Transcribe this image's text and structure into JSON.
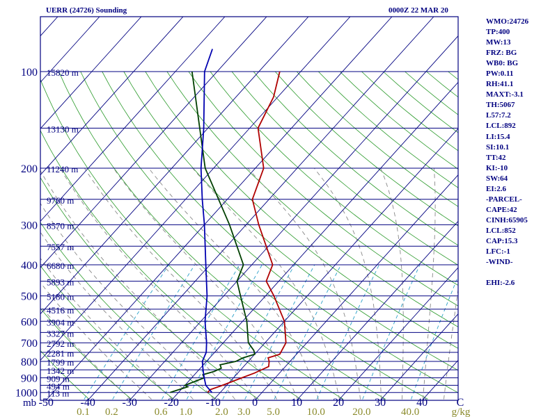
{
  "header": {
    "station": "UERR (24726) Sounding",
    "time": "0000Z 22 MAR 20"
  },
  "indices": [
    "WMO:24726",
    "TP:400",
    "MW:13",
    "FRZ: BG",
    "WB0: BG",
    "PW:0.11",
    "RH:41.1",
    "MAXT:-3.1",
    "TH:5067",
    "L57:7.2",
    "LCL:892",
    "LI:15.4",
    "SI:10.1",
    "TT:42",
    "KI:-10",
    "SW:64",
    "EI:2.6",
    "-PARCEL-",
    "CAPE:42",
    "CINH:65905",
    "LCL:852",
    "CAP:15.3",
    "LFC:-1",
    "-WIND-",
    "",
    "EHI:-2.6"
  ],
  "chart_data": {
    "type": "line",
    "title": "UERR (24726) Sounding",
    "xlabel": "",
    "ylabel": "mb",
    "x_tick_labels": [
      "-50",
      "-40",
      "-30",
      "-20",
      "-10",
      "0",
      "10",
      "20",
      "30",
      "40",
      "C"
    ],
    "x_tick_values": [
      -50,
      -40,
      -30,
      -20,
      -10,
      0,
      10,
      20,
      30,
      40
    ],
    "mixing_ratio_labels": [
      "0.1",
      "0.2",
      "0.6",
      "1.0",
      "2.0",
      "3.0",
      "5.0",
      "10.0",
      "20.0",
      "40.0",
      "g/kg"
    ],
    "mixing_ratio_values": [
      0.1,
      0.2,
      0.6,
      1.0,
      2.0,
      3.0,
      5.0,
      10.0,
      20.0,
      40.0
    ],
    "pressure_labels": [
      "100",
      "200",
      "300",
      "400",
      "500",
      "600",
      "700",
      "800",
      "900",
      "1000"
    ],
    "pressure_values": [
      100,
      200,
      300,
      400,
      500,
      600,
      700,
      800,
      900,
      1000
    ],
    "ylim": [
      1050,
      100
    ],
    "xlim": [
      -50,
      50
    ],
    "height_labels": [
      {
        "p": 100,
        "label": "15820 m"
      },
      {
        "p": 150,
        "label": "13130 m"
      },
      {
        "p": 200,
        "label": "11240 m"
      },
      {
        "p": 250,
        "label": "9760 m"
      },
      {
        "p": 300,
        "label": "8570 m"
      },
      {
        "p": 350,
        "label": "7557 m"
      },
      {
        "p": 400,
        "label": "6680 m"
      },
      {
        "p": 450,
        "label": "5893 m"
      },
      {
        "p": 500,
        "label": "5180 m"
      },
      {
        "p": 550,
        "label": "4516 m"
      },
      {
        "p": 600,
        "label": "3904 m"
      },
      {
        "p": 650,
        "label": "3327 m"
      },
      {
        "p": 700,
        "label": "2792 m"
      },
      {
        "p": 750,
        "label": "2281 m"
      },
      {
        "p": 800,
        "label": "1799 m"
      },
      {
        "p": 850,
        "label": "1342 m"
      },
      {
        "p": 900,
        "label": "909 m"
      },
      {
        "p": 950,
        "label": "494 m"
      },
      {
        "p": 1000,
        "label": "113 m"
      }
    ],
    "series": [
      {
        "color": "#b00000",
        "values": [
          {
            "p": 1000,
            "t": -13
          },
          {
            "p": 980,
            "t": -13
          },
          {
            "p": 950,
            "t": -11
          },
          {
            "p": 900,
            "t": -8
          },
          {
            "p": 870,
            "t": -6
          },
          {
            "p": 830,
            "t": -4
          },
          {
            "p": 800,
            "t": -5
          },
          {
            "p": 780,
            "t": -6
          },
          {
            "p": 760,
            "t": -4
          },
          {
            "p": 700,
            "t": -5
          },
          {
            "p": 600,
            "t": -10
          },
          {
            "p": 500,
            "t": -18
          },
          {
            "p": 450,
            "t": -23
          },
          {
            "p": 400,
            "t": -25
          },
          {
            "p": 300,
            "t": -37
          },
          {
            "p": 250,
            "t": -44
          },
          {
            "p": 200,
            "t": -48
          },
          {
            "p": 150,
            "t": -58
          },
          {
            "p": 120,
            "t": -61
          },
          {
            "p": 100,
            "t": -65
          }
        ]
      },
      {
        "color": "#004000",
        "values": [
          {
            "p": 1000,
            "t": -22
          },
          {
            "p": 960,
            "t": -19
          },
          {
            "p": 950,
            "t": -20
          },
          {
            "p": 900,
            "t": -17
          },
          {
            "p": 880,
            "t": -18
          },
          {
            "p": 860,
            "t": -16
          },
          {
            "p": 840,
            "t": -15
          },
          {
            "p": 820,
            "t": -16
          },
          {
            "p": 800,
            "t": -13
          },
          {
            "p": 780,
            "t": -12
          },
          {
            "p": 760,
            "t": -10
          },
          {
            "p": 740,
            "t": -11
          },
          {
            "p": 700,
            "t": -14
          },
          {
            "p": 600,
            "t": -19
          },
          {
            "p": 500,
            "t": -26
          },
          {
            "p": 450,
            "t": -30
          },
          {
            "p": 400,
            "t": -32
          },
          {
            "p": 300,
            "t": -44
          },
          {
            "p": 200,
            "t": -62
          },
          {
            "p": 100,
            "t": -86
          }
        ]
      },
      {
        "color": "#0000b0",
        "values": [
          {
            "p": 1000,
            "t": -12
          },
          {
            "p": 950,
            "t": -15
          },
          {
            "p": 900,
            "t": -17
          },
          {
            "p": 850,
            "t": -19
          },
          {
            "p": 800,
            "t": -21
          },
          {
            "p": 750,
            "t": -22
          },
          {
            "p": 700,
            "t": -24
          },
          {
            "p": 600,
            "t": -29
          },
          {
            "p": 500,
            "t": -34
          },
          {
            "p": 400,
            "t": -41
          },
          {
            "p": 300,
            "t": -50
          },
          {
            "p": 250,
            "t": -56
          },
          {
            "p": 200,
            "t": -63
          },
          {
            "p": 150,
            "t": -71
          },
          {
            "p": 100,
            "t": -83
          },
          {
            "p": 85,
            "t": -86
          }
        ]
      }
    ],
    "grid": true,
    "colors": {
      "isobar": "#000080",
      "isotherm": "#000080",
      "dry_adiabat": "#2a9a2a",
      "moist_adiabat": "#888888",
      "mixing_ratio": "#2aa0c8",
      "temperature": "#b00000",
      "dewpoint": "#004000",
      "parcel": "#0000b0",
      "labels": "#000080",
      "mixing_ratio_labels": "#8a8a2a"
    }
  }
}
